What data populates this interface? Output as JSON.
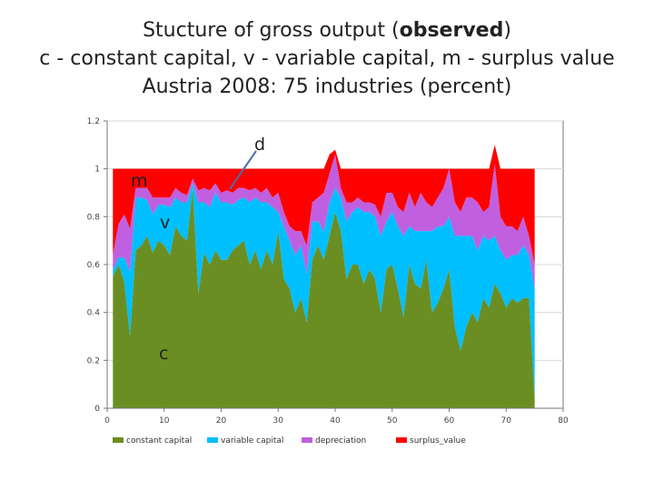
{
  "title": {
    "line1_prefix": "Stucture of gross output (",
    "line1_bold": "observed",
    "line1_suffix": ")",
    "line2": "c - constant capital, v - variable capital, m - surplus value",
    "line3": "Austria 2008: 75 industries (percent)"
  },
  "annotations": {
    "m": "m",
    "v": "v",
    "c": "c",
    "d": "d"
  },
  "colors": {
    "constant_capital": "#6b8e23",
    "variable_capital": "#00bfff",
    "depreciation": "#c060e0",
    "surplus_value": "#ff0000",
    "axis": "#777777",
    "grid": "#d8d8d8"
  },
  "chart_data": {
    "type": "area",
    "stacked": true,
    "xlim": [
      0,
      80
    ],
    "ylim": [
      0,
      1.2
    ],
    "x_ticks": [
      0,
      10,
      20,
      30,
      40,
      50,
      60,
      70,
      80
    ],
    "y_ticks": [
      0,
      0.2,
      0.4,
      0.6,
      0.8,
      1,
      1.2
    ],
    "y_tick_labels": [
      "0",
      "0.2",
      "0.4",
      "0.6",
      "0.8",
      "1",
      "1.2"
    ],
    "legend_position": "bottom",
    "x": [
      1,
      2,
      3,
      4,
      5,
      6,
      7,
      8,
      9,
      10,
      11,
      12,
      13,
      14,
      15,
      16,
      17,
      18,
      19,
      20,
      21,
      22,
      23,
      24,
      25,
      26,
      27,
      28,
      29,
      30,
      31,
      32,
      33,
      34,
      35,
      36,
      37,
      38,
      39,
      40,
      41,
      42,
      43,
      44,
      45,
      46,
      47,
      48,
      49,
      50,
      51,
      52,
      53,
      54,
      55,
      56,
      57,
      58,
      59,
      60,
      61,
      62,
      63,
      64,
      65,
      66,
      67,
      68,
      69,
      70,
      71,
      72,
      73,
      74,
      75
    ],
    "series": [
      {
        "name": "constant capital",
        "values": [
          0.55,
          0.6,
          0.53,
          0.3,
          0.66,
          0.68,
          0.72,
          0.65,
          0.7,
          0.68,
          0.64,
          0.76,
          0.72,
          0.7,
          0.92,
          0.48,
          0.65,
          0.6,
          0.66,
          0.62,
          0.62,
          0.66,
          0.68,
          0.7,
          0.6,
          0.66,
          0.58,
          0.66,
          0.6,
          0.74,
          0.54,
          0.5,
          0.4,
          0.46,
          0.36,
          0.62,
          0.68,
          0.62,
          0.72,
          0.82,
          0.74,
          0.54,
          0.6,
          0.6,
          0.52,
          0.58,
          0.54,
          0.4,
          0.58,
          0.6,
          0.5,
          0.38,
          0.6,
          0.52,
          0.5,
          0.62,
          0.4,
          0.44,
          0.5,
          0.58,
          0.34,
          0.24,
          0.34,
          0.4,
          0.36,
          0.46,
          0.42,
          0.52,
          0.48,
          0.42,
          0.46,
          0.44,
          0.46,
          0.46,
          0.04
        ]
      },
      {
        "name": "variable capital",
        "values": [
          0.03,
          0.03,
          0.1,
          0.27,
          0.22,
          0.2,
          0.15,
          0.16,
          0.15,
          0.17,
          0.2,
          0.12,
          0.14,
          0.16,
          0.02,
          0.38,
          0.21,
          0.24,
          0.24,
          0.24,
          0.24,
          0.19,
          0.19,
          0.18,
          0.26,
          0.22,
          0.28,
          0.2,
          0.24,
          0.08,
          0.22,
          0.2,
          0.24,
          0.22,
          0.2,
          0.16,
          0.1,
          0.12,
          0.14,
          0.1,
          0.14,
          0.24,
          0.22,
          0.24,
          0.3,
          0.24,
          0.26,
          0.32,
          0.2,
          0.22,
          0.26,
          0.34,
          0.16,
          0.22,
          0.24,
          0.12,
          0.34,
          0.32,
          0.26,
          0.22,
          0.38,
          0.48,
          0.38,
          0.32,
          0.3,
          0.26,
          0.28,
          0.2,
          0.18,
          0.2,
          0.18,
          0.2,
          0.22,
          0.18,
          0.46
        ]
      },
      {
        "name": "depreciation",
        "values": [
          0.06,
          0.14,
          0.18,
          0.18,
          0.04,
          0.04,
          0.05,
          0.07,
          0.03,
          0.03,
          0.04,
          0.04,
          0.04,
          0.03,
          0.02,
          0.05,
          0.06,
          0.07,
          0.04,
          0.04,
          0.05,
          0.05,
          0.05,
          0.04,
          0.05,
          0.04,
          0.04,
          0.06,
          0.04,
          0.08,
          0.06,
          0.06,
          0.1,
          0.06,
          0.12,
          0.08,
          0.1,
          0.16,
          0.12,
          0.14,
          0.04,
          0.08,
          0.04,
          0.04,
          0.04,
          0.04,
          0.05,
          0.08,
          0.12,
          0.08,
          0.08,
          0.1,
          0.14,
          0.1,
          0.16,
          0.12,
          0.1,
          0.12,
          0.16,
          0.2,
          0.14,
          0.1,
          0.16,
          0.16,
          0.2,
          0.1,
          0.14,
          0.3,
          0.14,
          0.14,
          0.12,
          0.1,
          0.12,
          0.08,
          0.1
        ]
      },
      {
        "name": "surplus_value",
        "values": [
          0.36,
          0.23,
          0.19,
          0.25,
          0.08,
          0.08,
          0.08,
          0.12,
          0.12,
          0.12,
          0.12,
          0.08,
          0.1,
          0.11,
          0.04,
          0.09,
          0.08,
          0.09,
          0.06,
          0.1,
          0.09,
          0.1,
          0.08,
          0.08,
          0.09,
          0.08,
          0.1,
          0.08,
          0.12,
          0.1,
          0.18,
          0.24,
          0.26,
          0.26,
          0.32,
          0.14,
          0.12,
          0.1,
          0.08,
          0.02,
          0.08,
          0.14,
          0.14,
          0.12,
          0.14,
          0.14,
          0.15,
          0.2,
          0.1,
          0.1,
          0.16,
          0.18,
          0.1,
          0.16,
          0.1,
          0.14,
          0.16,
          0.12,
          0.08,
          0.0,
          0.14,
          0.18,
          0.12,
          0.12,
          0.14,
          0.18,
          0.16,
          0.08,
          0.2,
          0.24,
          0.24,
          0.26,
          0.2,
          0.28,
          0.4
        ]
      }
    ]
  }
}
